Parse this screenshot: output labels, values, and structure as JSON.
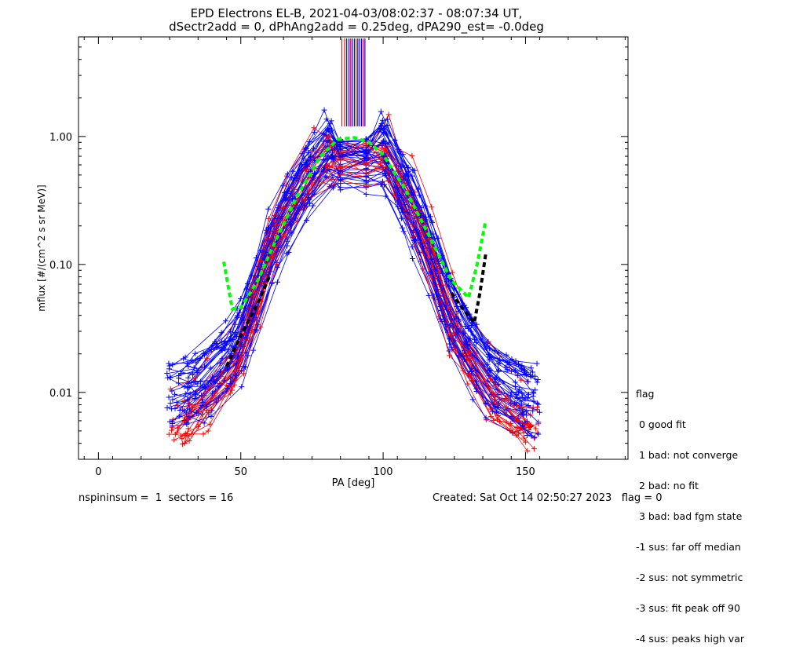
{
  "chart_data": {
    "type": "line",
    "title_lines": [
      "EPD Electrons EL-B, 2021-04-03/08:02:37 - 08:07:34 UT,",
      "dSectr2add = 0, dPhAng2add = 0.25deg, dPA290_est=  -0.0deg"
    ],
    "xlabel": "PA [deg]",
    "ylabel": "mflux [#/(cm^2 s sr MeV)]",
    "xlim": [
      -7,
      186
    ],
    "ylim": [
      0.003,
      6.0
    ],
    "y_scale": "log",
    "x_ticks": [
      0,
      50,
      100,
      150
    ],
    "x_tick_labels": [
      "0",
      "50",
      "100",
      "150"
    ],
    "y_ticks": [
      0.01,
      0.1,
      1.0
    ],
    "y_tick_labels": [
      "0.01",
      "0.10",
      "1.00"
    ],
    "grid": false,
    "series": [
      {
        "color": "#0000ff",
        "marker": "+",
        "shape": "sweep profile",
        "pa": [
          28,
          37,
          50,
          62,
          75,
          83,
          92,
          100,
          113,
          125,
          138,
          152
        ],
        "mflux": [
          0.009,
          0.011,
          0.024,
          0.16,
          0.55,
          0.9,
          0.88,
          0.8,
          0.2,
          0.035,
          0.012,
          0.0085
        ]
      },
      {
        "color": "#ff0000",
        "marker": "+",
        "shape": "sweep profile",
        "pa": [
          26,
          36,
          50,
          62,
          75,
          83,
          92,
          100,
          113,
          126,
          140,
          153
        ],
        "mflux": [
          0.006,
          0.008,
          0.02,
          0.2,
          0.6,
          0.92,
          0.9,
          0.85,
          0.25,
          0.03,
          0.009,
          0.006
        ]
      },
      {
        "color": "#00ff00",
        "style": "dashed fit",
        "shape": "fit curve",
        "pa": [
          44,
          47,
          50,
          56,
          62,
          70,
          78,
          84,
          90,
          95,
          100,
          108,
          116,
          124,
          130,
          133,
          136
        ],
        "mflux": [
          0.105,
          0.045,
          0.046,
          0.075,
          0.15,
          0.35,
          0.7,
          0.95,
          0.98,
          0.9,
          0.72,
          0.38,
          0.17,
          0.075,
          0.055,
          0.1,
          0.22
        ]
      },
      {
        "color": "#000000",
        "style": "dashed fit",
        "shape": "fit curve",
        "pa": [
          45,
          50,
          56,
          60,
          124,
          128,
          132,
          134,
          136
        ],
        "mflux": [
          0.016,
          0.028,
          0.05,
          0.08,
          0.06,
          0.045,
          0.035,
          0.06,
          0.12
        ]
      }
    ],
    "saturated_lines_pa": [
      85.5,
      86.5,
      87.2,
      88.0,
      88.6,
      89.2,
      89.9,
      90.5,
      91.1,
      91.7,
      92.4,
      93.0,
      93.6
    ],
    "saturated_line_colors": [
      "#ff0000",
      "#ff0000",
      "#0000ff",
      "#0000ff",
      "#ff0000",
      "#0000ff",
      "#0000ff",
      "#ff0000",
      "#0000ff",
      "#0000ff",
      "#0000ff",
      "#ff0000",
      "#0000ff"
    ],
    "saturated_from_mflux": 1.2,
    "colors": {
      "blue": "#0000ff",
      "red": "#ff0000",
      "green": "#00ff00",
      "black": "#000000"
    }
  },
  "legend": {
    "title": "flag",
    "items": [
      " 0 good fit",
      " 1 bad: not converge",
      " 2 bad: no fit",
      " 3 bad: bad fgm state",
      "-1 sus: far off median",
      "-2 sus: not symmetric",
      "-3 sus: fit peak off 90",
      "-4 sus: peaks high var"
    ]
  },
  "footer": {
    "left": "nspininsum =  1  sectors = 16",
    "right": "Created: Sat Oct 14 02:50:27 2023   flag = 0"
  }
}
